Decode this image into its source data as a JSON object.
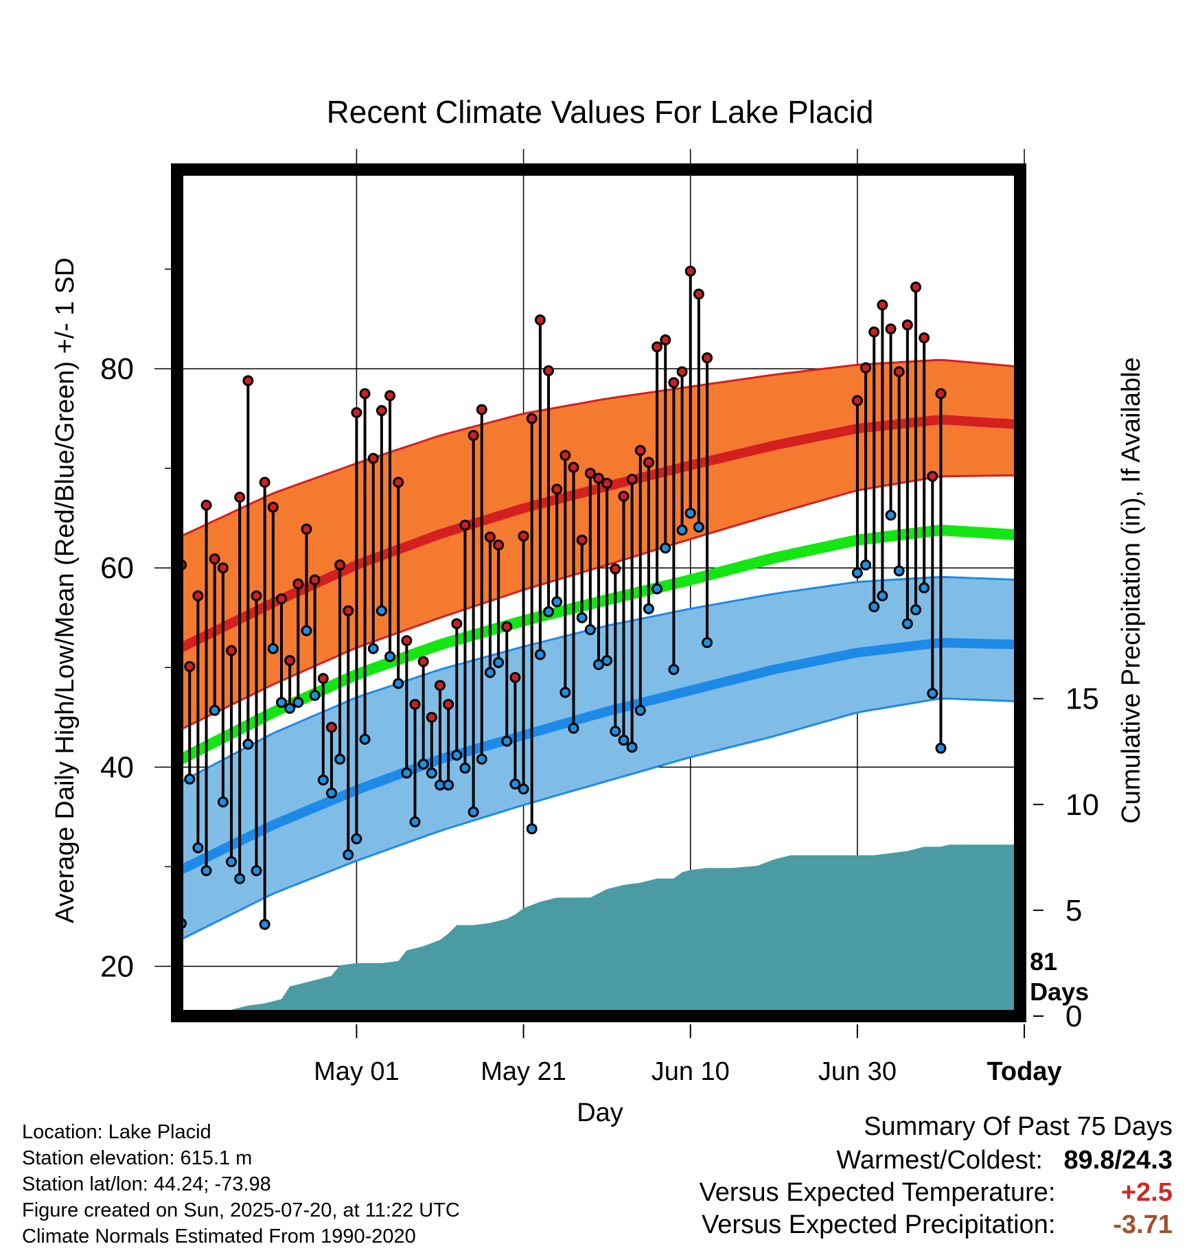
{
  "chart_data": {
    "type": "line",
    "title": "Recent Climate Values For Lake Placid",
    "xlabel": "Day",
    "ylabel": "Average Daily High/Low/Mean (Red/Blue/Green) +/- 1 SD",
    "y2label": "Cumulative Precipitation (in), If Available",
    "ylim": [
      15,
      100
    ],
    "y2lim": [
      0,
      40
    ],
    "xlim": [
      -11.5,
      89.5
    ],
    "y_ticks": [
      20,
      40,
      60,
      80
    ],
    "y2_ticks": [
      0,
      5,
      10,
      15
    ],
    "x_ticks": [
      {
        "day": 10,
        "label": "May 01"
      },
      {
        "day": 30,
        "label": "May 21"
      },
      {
        "day": 50,
        "label": "Jun 10"
      },
      {
        "day": 70,
        "label": "Jun 30"
      },
      {
        "day": 90,
        "label": "Today"
      }
    ],
    "today_marker": {
      "day": 90,
      "label_line1": "81",
      "label_line2": "Days"
    },
    "normals": {
      "days": [
        -11.5,
        0,
        10,
        20,
        30,
        40,
        50,
        60,
        70,
        80,
        89.5
      ],
      "high_mean": [
        51.8,
        56.5,
        60.3,
        63.4,
        66.0,
        68.2,
        70.3,
        72.3,
        74.0,
        74.9,
        74.4
      ],
      "high_plus_sd": [
        63.0,
        67.5,
        70.5,
        73.3,
        75.5,
        77.0,
        78.2,
        79.4,
        80.4,
        80.9,
        80.2
      ],
      "high_minus_sd": [
        43.6,
        48.3,
        52.0,
        55.0,
        57.8,
        60.3,
        62.9,
        65.4,
        67.8,
        69.2,
        69.3
      ],
      "mean": [
        40.6,
        45.5,
        49.3,
        52.3,
        54.7,
        56.8,
        58.8,
        61.0,
        62.8,
        63.8,
        63.3
      ],
      "low_mean": [
        29.5,
        34.2,
        37.7,
        40.8,
        43.2,
        45.6,
        47.7,
        49.8,
        51.5,
        52.5,
        52.3
      ],
      "low_plus_sd": [
        38.3,
        43.4,
        47.0,
        49.8,
        52.1,
        54.2,
        55.9,
        57.4,
        58.6,
        59.1,
        58.8
      ],
      "low_minus_sd": [
        22.5,
        27.3,
        30.6,
        33.6,
        36.2,
        38.6,
        41.0,
        43.1,
        45.5,
        46.9,
        46.6
      ]
    },
    "series": [
      {
        "name": "High",
        "color": "#cc2020",
        "x": [
          -11,
          -10,
          -9,
          -8,
          -7,
          -6,
          -5,
          -4,
          -3,
          -2,
          -1,
          0,
          1,
          2,
          3,
          4,
          5,
          6,
          7,
          8,
          9,
          10,
          11,
          12,
          13,
          14,
          15,
          16,
          17,
          18,
          19,
          20,
          21,
          22,
          23,
          24,
          25,
          26,
          27,
          28,
          29,
          30,
          31,
          32,
          33,
          34,
          35,
          36,
          37,
          38,
          39,
          40,
          41,
          42,
          43,
          44,
          45,
          46,
          47,
          48,
          49,
          50,
          51,
          52,
          53,
          54,
          55,
          56,
          57,
          58,
          59,
          60,
          61,
          62,
          63,
          64,
          65,
          66,
          67,
          68,
          69
        ],
        "values": [
          60.3,
          50.1,
          57.2,
          66.3,
          60.9,
          60.0,
          51.7,
          67.1,
          78.8,
          57.2,
          68.6,
          66.1,
          56.9,
          50.7,
          58.4,
          63.9,
          58.8,
          48.9,
          44.0,
          60.3,
          55.7,
          75.6,
          77.5,
          71.0,
          75.8,
          77.3,
          68.6,
          52.7,
          46.3,
          50.6,
          45.0,
          48.2,
          46.3,
          54.4,
          64.3,
          73.3,
          75.9,
          63.1,
          62.3,
          54.1,
          49.0,
          63.2,
          75.0,
          84.9,
          79.8,
          67.9,
          71.3,
          70.1,
          62.8,
          69.5,
          69.0,
          68.5,
          59.9,
          67.2,
          68.9,
          71.8,
          70.6,
          82.2,
          82.9,
          78.6,
          79.7,
          89.8,
          87.5,
          81.1,
          null,
          null,
          null,
          null,
          null,
          null,
          null,
          null,
          null,
          null,
          null,
          null,
          null,
          null,
          null,
          null,
          null
        ],
        "x_high2": [
          70,
          71,
          72,
          73,
          74,
          75,
          76,
          77,
          78,
          79,
          80,
          81
        ],
        "values_high2": [
          76.8,
          80.1,
          83.7,
          86.4,
          84.0,
          79.7,
          84.4,
          88.2,
          83.1,
          69.2,
          77.5,
          null
        ]
      },
      {
        "name": "Low",
        "color": "#1e90e0",
        "x": [
          -11,
          -10,
          -9,
          -8,
          -7,
          -6,
          -5,
          -4,
          -3,
          -2,
          -1,
          0,
          1,
          2,
          3,
          4,
          5,
          6,
          7,
          8,
          9,
          10,
          11,
          12,
          13,
          14,
          15,
          16,
          17,
          18,
          19,
          20,
          21,
          22,
          23,
          24,
          25,
          26,
          27,
          28,
          29,
          30,
          31,
          32,
          33,
          34,
          35,
          36,
          37,
          38,
          39,
          40,
          41,
          42,
          43,
          44,
          45,
          46,
          47,
          48,
          49,
          50,
          51,
          52
        ],
        "values": [
          24.3,
          38.8,
          31.9,
          29.6,
          45.7,
          36.5,
          30.5,
          28.8,
          42.3,
          29.6,
          24.2,
          51.9,
          46.5,
          45.9,
          46.5,
          53.7,
          47.2,
          38.7,
          37.4,
          40.8,
          31.2,
          32.8,
          42.8,
          51.9,
          55.7,
          51.1,
          48.4,
          39.4,
          34.5,
          40.3,
          39.4,
          38.2,
          38.2,
          41.2,
          39.9,
          35.5,
          40.8,
          49.5,
          50.5,
          42.6,
          38.3,
          37.8,
          33.8,
          51.3,
          55.6,
          56.6,
          47.5,
          43.9,
          55.0,
          53.8,
          50.3,
          50.7,
          43.6,
          42.7,
          42.0,
          45.7,
          55.9,
          57.9,
          62.0,
          49.8,
          63.8,
          65.5,
          64.1,
          52.5
        ]
      }
    ],
    "low_second_segment": {
      "x": [
        70,
        71,
        72,
        73,
        74,
        75,
        76,
        77,
        78,
        79,
        80
      ],
      "values": [
        59.5,
        60.3,
        56.1,
        57.2,
        65.3,
        59.7,
        54.4,
        55.8,
        58.0,
        47.4,
        41.9
      ]
    },
    "precip_cumulative": {
      "color": "#4a9ba4",
      "days": [
        -6,
        -5,
        -3,
        -1,
        1,
        2,
        4,
        6,
        7,
        8,
        10,
        12,
        13,
        15,
        16,
        17,
        18,
        20,
        21,
        22,
        24,
        26,
        28,
        29,
        30,
        32,
        34,
        36,
        38,
        40,
        41,
        42,
        44,
        45,
        46,
        48,
        49,
        50,
        52,
        53,
        55,
        58,
        60,
        62,
        64,
        66,
        68,
        70,
        72,
        74,
        76,
        78,
        80,
        81,
        89.5
      ],
      "values": [
        0.0,
        0.3,
        0.5,
        0.6,
        0.8,
        1.4,
        1.6,
        1.8,
        1.9,
        2.4,
        2.5,
        2.5,
        2.5,
        2.6,
        3.1,
        3.2,
        3.3,
        3.6,
        3.9,
        4.3,
        4.3,
        4.4,
        4.6,
        4.8,
        5.1,
        5.4,
        5.6,
        5.6,
        5.6,
        6.0,
        6.1,
        6.2,
        6.3,
        6.4,
        6.5,
        6.5,
        6.8,
        6.9,
        7.0,
        7.0,
        7.0,
        7.1,
        7.4,
        7.6,
        7.6,
        7.6,
        7.6,
        7.6,
        7.6,
        7.7,
        7.8,
        8.0,
        8.0,
        8.1,
        8.1
      ]
    }
  },
  "info": {
    "location": "Location: Lake Placid",
    "elevation": "Station elevation: 615.1 m",
    "latlon": "Station lat/lon: 44.24; -73.98",
    "created": "Figure created on Sun, 2025-07-20, at 11:22 UTC",
    "normals": "Climate Normals Estimated From 1990-2020"
  },
  "summary": {
    "title": "Summary Of Past 75 Days",
    "warmest_label": "Warmest/Coldest:",
    "warmest_hi": "89.8",
    "sep": "/",
    "warmest_lo": "24.3",
    "temp_label": "Versus Expected Temperature:",
    "temp_value": "+2.5",
    "temp_color": "#d02828",
    "precip_label": "Versus Expected Precipitation:",
    "precip_value": "-3.71",
    "precip_color": "#a0522d"
  }
}
